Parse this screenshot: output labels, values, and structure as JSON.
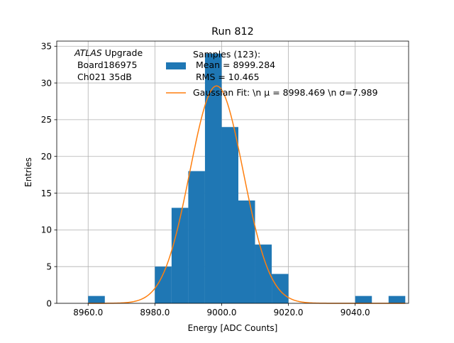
{
  "chart_data": {
    "type": "bar",
    "title": "Run 812",
    "xlabel": "Energy [ADC Counts]",
    "ylabel": "Entries",
    "xlim": [
      8950.6,
      9056.0
    ],
    "ylim": [
      0,
      35.7
    ],
    "grid": true,
    "legend_placement": "top-center",
    "x_ticks": [
      8960.0,
      8980.0,
      9000.0,
      9020.0,
      9040.0
    ],
    "x_tick_labels": [
      "8960.0",
      "8980.0",
      "9000.0",
      "9020.0",
      "9040.0"
    ],
    "y_ticks": [
      0,
      5,
      10,
      15,
      20,
      25,
      30,
      35
    ],
    "y_tick_labels": [
      "0",
      "5",
      "10",
      "15",
      "20",
      "25",
      "30",
      "35"
    ],
    "histogram": {
      "name": "Samples (123):\n Mean = 8999.284\n RMS = 10.465",
      "color": "#1f77b4",
      "bin_edges": [
        8960,
        8965,
        8970,
        8975,
        8980,
        8985,
        8990,
        8995,
        9000,
        9005,
        9010,
        9015,
        9020,
        9025,
        9030,
        9035,
        9040,
        9045,
        9050,
        9055
      ],
      "counts": [
        1,
        0,
        0,
        0,
        5,
        13,
        18,
        34,
        24,
        14,
        8,
        4,
        0,
        0,
        0,
        0,
        1,
        0,
        1
      ]
    },
    "fit": {
      "name": "Gaussian Fit: \\n $\\mu$ = 8998.469 \\n $\\sigma$=7.989",
      "color": "#ff7f0e",
      "mu": 8998.469,
      "sigma": 7.989,
      "amplitude": 29.6
    },
    "legend_entries": [
      {
        "label_lines": [
          "Samples (123):",
          " Mean = 8999.284",
          " RMS = 10.465"
        ],
        "kind": "patch",
        "color": "#1f77b4"
      },
      {
        "label_lines": [
          "Gaussian Fit: \\n μ = 8998.469 \\n σ=7.989"
        ],
        "kind": "line",
        "color": "#ff7f0e"
      }
    ],
    "annotation": {
      "atlas": "ATLAS",
      "upgrade": " Upgrade",
      "board": " Board186975",
      "channel": " Ch021 35dB"
    }
  }
}
